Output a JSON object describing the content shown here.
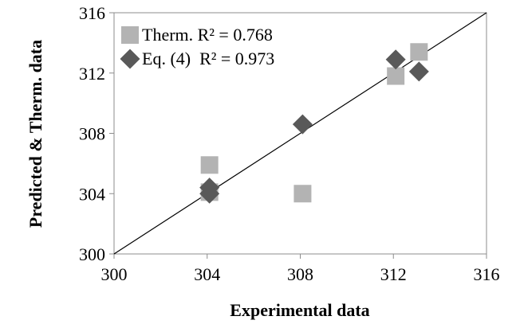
{
  "chart_data": {
    "type": "scatter",
    "xlabel": "Experimental data",
    "ylabel": "Predicted & Therm.  data",
    "xlim": [
      300,
      316
    ],
    "ylim": [
      300,
      316
    ],
    "xticks": [
      300,
      304,
      308,
      312,
      316
    ],
    "yticks": [
      300,
      304,
      308,
      312,
      316
    ],
    "grid": false,
    "legend_position": "top-left",
    "reference_line": {
      "from": [
        300,
        300
      ],
      "to": [
        316,
        316
      ]
    },
    "series": [
      {
        "name": "Therm.",
        "legend_label": "Therm. R² = 0.768",
        "marker": "square",
        "color": "#b3b3b3",
        "points": [
          {
            "x": 304.1,
            "y": 304.1
          },
          {
            "x": 304.1,
            "y": 305.9
          },
          {
            "x": 308.1,
            "y": 304.0
          },
          {
            "x": 312.1,
            "y": 311.8
          },
          {
            "x": 313.1,
            "y": 313.4
          }
        ]
      },
      {
        "name": "Eq. (4)",
        "legend_label": "Eq. (4)  R² = 0.973",
        "marker": "diamond",
        "color": "#595959",
        "points": [
          {
            "x": 304.1,
            "y": 304.0
          },
          {
            "x": 304.1,
            "y": 304.4
          },
          {
            "x": 308.1,
            "y": 308.6
          },
          {
            "x": 312.1,
            "y": 312.9
          },
          {
            "x": 313.1,
            "y": 312.1
          }
        ]
      }
    ]
  }
}
